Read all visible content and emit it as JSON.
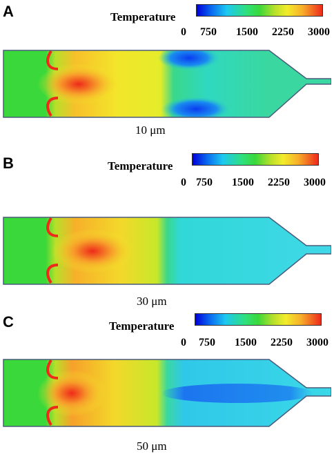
{
  "colorbar": {
    "title": "Temperature",
    "ticks": [
      "0",
      "750",
      "1500",
      "2250",
      "3000"
    ],
    "min": 0,
    "max": 3000
  },
  "panels": [
    {
      "letter": "A",
      "size_label": "10 μm",
      "cold_region": "blue-pockets"
    },
    {
      "letter": "B",
      "size_label": "30 μm",
      "cold_region": "cyan-uniform"
    },
    {
      "letter": "C",
      "size_label": "50 μm",
      "cold_region": "cyan-blue-core"
    }
  ],
  "colors": {
    "hot": "#ee2a1a",
    "warm": "#f3ec2a",
    "mid": "#3ad83a",
    "cool": "#1cc8f0",
    "cold": "#0a4cf0"
  }
}
